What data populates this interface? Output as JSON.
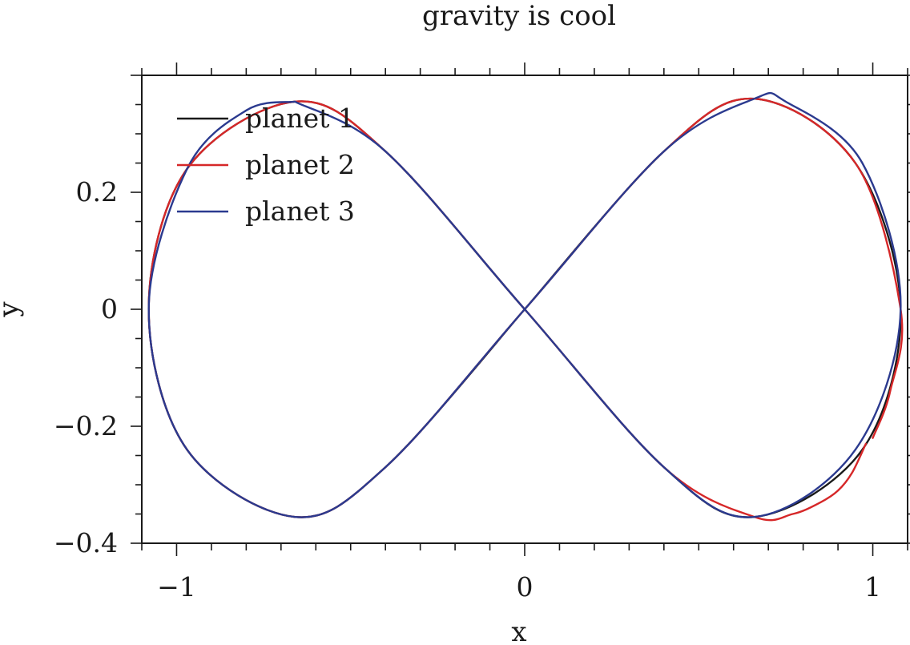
{
  "chart_data": {
    "type": "line",
    "title": "gravity is cool",
    "xlabel": "x",
    "ylabel": "y",
    "xlim": [
      -1.1,
      1.1
    ],
    "ylim": [
      -0.4,
      0.4
    ],
    "xticks": [
      -1,
      0,
      1
    ],
    "xtick_labels": [
      "−1",
      "0",
      "1"
    ],
    "yticks": [
      -0.4,
      -0.2,
      0,
      0.2
    ],
    "ytick_labels": [
      "−0.4",
      "−0.2",
      "0",
      "0.2"
    ],
    "grid": false,
    "legend_position": "top-left",
    "series": [
      {
        "name": "planet 1",
        "color": "#1a1a1a",
        "x": [
          0,
          0.4,
          0.66,
          0.95,
          1.08,
          0.97,
          0.66,
          0.4,
          0,
          -0.4,
          -0.66,
          -0.97,
          -1.08,
          -0.97,
          -0.66,
          -0.4,
          0
        ],
        "y": [
          0,
          0.27,
          0.36,
          0.25,
          0,
          -0.24,
          -0.355,
          -0.27,
          0,
          0.27,
          0.355,
          0.24,
          0,
          -0.24,
          -0.355,
          -0.27,
          0
        ]
      },
      {
        "name": "planet 2",
        "color": "#d62728",
        "x": [
          0.98,
          0.94,
          0.9,
          0.85,
          0.77,
          0.66,
          0.4,
          0,
          -0.4,
          -0.66,
          -0.97,
          -1.08,
          -0.97,
          -0.66,
          -0.4,
          0,
          0.4,
          0.66,
          0.95,
          1.08,
          1.05,
          1.0
        ],
        "y": [
          -0.23,
          -0.28,
          -0.31,
          -0.33,
          -0.35,
          -0.355,
          -0.27,
          0,
          0.27,
          0.355,
          0.24,
          0,
          -0.24,
          -0.355,
          -0.27,
          0,
          0.27,
          0.36,
          0.25,
          0,
          -0.14,
          -0.22
        ]
      },
      {
        "name": "planet 3",
        "color": "#2b3a8f",
        "x": [
          -0.66,
          -0.4,
          0,
          0.4,
          0.66,
          0.95,
          1.08,
          0.97,
          0.75,
          0.66,
          0.4,
          0,
          -0.4,
          -0.66,
          -0.97,
          -1.08,
          -0.97,
          -0.8,
          -0.66
        ],
        "y": [
          0.355,
          0.27,
          0,
          -0.27,
          -0.355,
          -0.24,
          0,
          0.25,
          0.355,
          0.36,
          0.27,
          0,
          -0.27,
          -0.355,
          -0.24,
          0,
          0.24,
          0.34,
          0.355
        ]
      }
    ]
  }
}
